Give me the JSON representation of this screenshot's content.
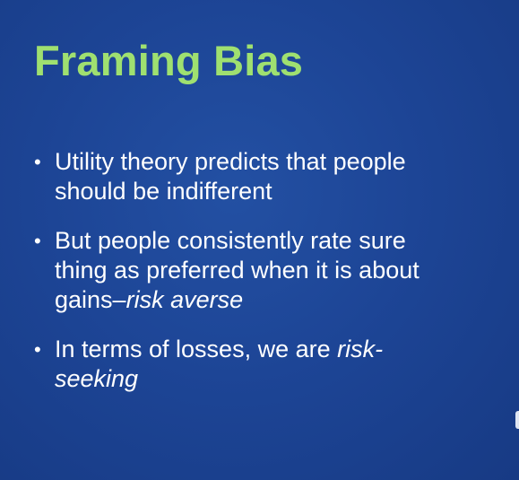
{
  "slide": {
    "title": "Framing Bias",
    "bullets": [
      {
        "line1": "Utility theory predicts that people",
        "line2": "should be indifferent"
      },
      {
        "line1": "But people consistently rate sure",
        "line2": "thing as preferred when it is about",
        "line3_plain": "gains–",
        "line3_italic": "risk averse"
      },
      {
        "line1_plain": "In terms of losses, we are ",
        "line1_italic": "risk-",
        "line2_italic": "seeking"
      }
    ],
    "bullet_symbol": "•"
  },
  "colors": {
    "title": "#9fe070",
    "text": "#ffffff",
    "background": "#1d4596"
  }
}
